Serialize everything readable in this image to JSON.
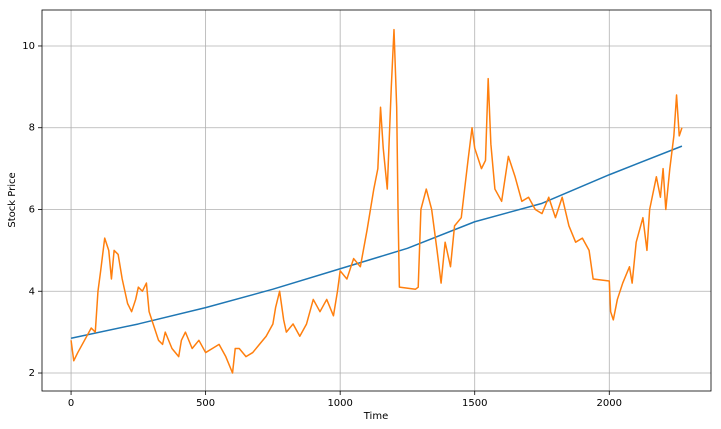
{
  "chart_data": {
    "type": "line",
    "xlabel": "Time",
    "ylabel": "Stock Price",
    "xlim": [
      -108,
      2378
    ],
    "ylim": [
      1.56,
      10.88
    ],
    "xticks": [
      0,
      500,
      1000,
      1500,
      2000
    ],
    "yticks": [
      2,
      4,
      6,
      8,
      10
    ],
    "grid": true,
    "series": [
      {
        "color": "#1f77b4",
        "x": [
          0,
          250,
          500,
          750,
          1000,
          1250,
          1500,
          1750,
          2000,
          2270
        ],
        "values": [
          2.85,
          3.2,
          3.6,
          4.05,
          4.55,
          5.05,
          5.7,
          6.15,
          6.85,
          7.55
        ]
      },
      {
        "color": "#ff7f0e",
        "x": [
          0,
          10,
          25,
          50,
          75,
          90,
          100,
          110,
          125,
          140,
          150,
          160,
          175,
          190,
          200,
          210,
          225,
          240,
          250,
          265,
          280,
          290,
          300,
          325,
          340,
          350,
          375,
          400,
          410,
          425,
          450,
          475,
          500,
          525,
          550,
          575,
          600,
          610,
          625,
          650,
          675,
          700,
          725,
          750,
          760,
          775,
          790,
          800,
          825,
          850,
          875,
          900,
          925,
          950,
          975,
          990,
          1000,
          1025,
          1050,
          1075,
          1100,
          1125,
          1140,
          1150,
          1160,
          1175,
          1190,
          1200,
          1210,
          1215,
          1220,
          1280,
          1290,
          1300,
          1320,
          1340,
          1360,
          1375,
          1390,
          1410,
          1425,
          1450,
          1475,
          1490,
          1500,
          1525,
          1540,
          1550,
          1560,
          1575,
          1600,
          1625,
          1650,
          1675,
          1700,
          1725,
          1750,
          1775,
          1800,
          1825,
          1850,
          1875,
          1900,
          1925,
          1940,
          2000,
          2005,
          2015,
          2030,
          2050,
          2075,
          2085,
          2100,
          2125,
          2140,
          2150,
          2175,
          2190,
          2200,
          2210,
          2225,
          2240,
          2250,
          2260,
          2270
        ],
        "values": [
          2.8,
          2.3,
          2.5,
          2.8,
          3.1,
          3.0,
          4.0,
          4.5,
          5.3,
          5.0,
          4.3,
          5.0,
          4.9,
          4.3,
          4.0,
          3.7,
          3.5,
          3.8,
          4.1,
          4.0,
          4.2,
          3.5,
          3.3,
          2.8,
          2.7,
          3.0,
          2.6,
          2.4,
          2.8,
          3.0,
          2.6,
          2.8,
          2.5,
          2.6,
          2.7,
          2.4,
          2.0,
          2.6,
          2.6,
          2.4,
          2.5,
          2.7,
          2.9,
          3.2,
          3.6,
          4.0,
          3.3,
          3.0,
          3.2,
          2.9,
          3.2,
          3.8,
          3.5,
          3.8,
          3.4,
          4.0,
          4.5,
          4.3,
          4.8,
          4.6,
          5.5,
          6.5,
          7.0,
          8.5,
          7.5,
          6.5,
          9.0,
          10.4,
          8.5,
          6.0,
          4.1,
          4.05,
          4.1,
          6.0,
          6.5,
          6.0,
          5.0,
          4.2,
          5.2,
          4.6,
          5.6,
          5.8,
          7.2,
          8.0,
          7.5,
          7.0,
          7.2,
          9.2,
          7.6,
          6.5,
          6.2,
          7.3,
          6.8,
          6.2,
          6.3,
          6.0,
          5.9,
          6.3,
          5.8,
          6.3,
          5.6,
          5.2,
          5.3,
          5.0,
          4.3,
          4.25,
          3.5,
          3.3,
          3.8,
          4.2,
          4.6,
          4.2,
          5.2,
          5.8,
          5.0,
          6.0,
          6.8,
          6.3,
          7.0,
          6.0,
          7.0,
          7.8,
          8.8,
          7.8,
          8.0
        ]
      }
    ]
  }
}
